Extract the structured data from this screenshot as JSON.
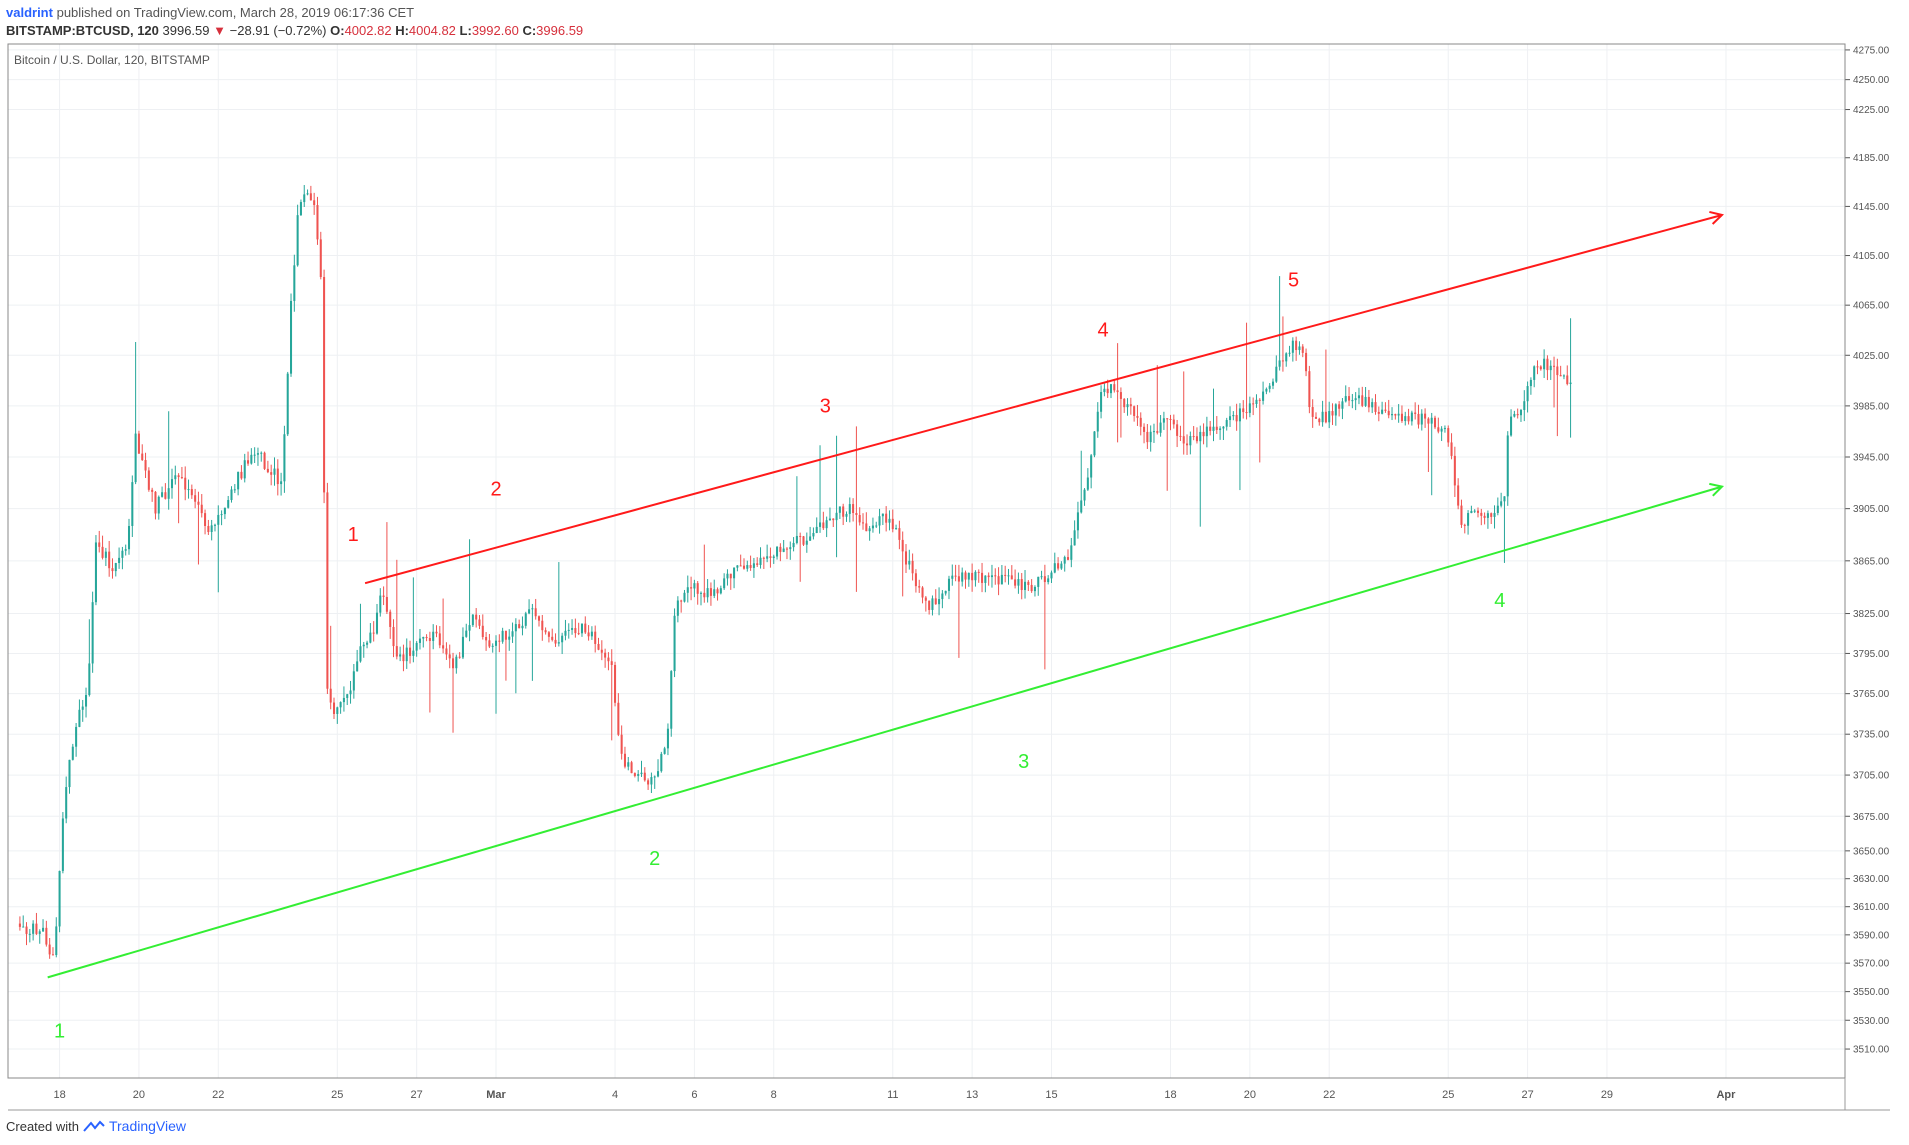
{
  "header": {
    "author": "valdrint",
    "published": "published on TradingView.com, March 28, 2019 06:17:36 CET"
  },
  "quote": {
    "symbol": "BITSTAMP:BTCUSD, 120",
    "last": "3996.59",
    "arrow": "▼",
    "change": "−28.91 (−0.72%)",
    "open_label": "O:",
    "open": "4002.82",
    "high_label": "H:",
    "high": "4004.82",
    "low_label": "L:",
    "low": "3992.60",
    "close_label": "C:",
    "close": "3996.59"
  },
  "footer": {
    "created": "Created with",
    "brand": "TradingView"
  },
  "colors": {
    "up": "#26a69a",
    "down": "#ef5350",
    "resistance": "#ff1a1a",
    "support": "#33ee33"
  },
  "chart_data": {
    "type": "candlestick",
    "title": "Bitcoin / U.S. Dollar, 120, BITSTAMP",
    "y_ticks": [
      4275,
      4250,
      4225,
      4185,
      4145,
      4105,
      4065,
      4025,
      3985,
      3945,
      3905,
      3865,
      3825,
      3795,
      3765,
      3735,
      3705,
      3675,
      3650,
      3630,
      3610,
      3590,
      3570,
      3550,
      3530,
      3510
    ],
    "y_scale": "log",
    "ylim": [
      3490,
      4280
    ],
    "x_ticks": [
      "18",
      "20",
      "22",
      "25",
      "27",
      "Mar",
      "4",
      "6",
      "8",
      "11",
      "13",
      "15",
      "18",
      "20",
      "22",
      "25",
      "27",
      "29",
      "Apr"
    ],
    "x_tick_days": [
      1,
      3,
      5,
      8,
      10,
      12,
      15,
      17,
      19,
      22,
      24,
      26,
      29,
      31,
      33,
      36,
      38,
      40,
      43
    ],
    "xlim_days": [
      -0.3,
      46
    ],
    "x_unit": "days since 2019-02-17",
    "anchors": [
      {
        "d": 0.0,
        "p": 3598
      },
      {
        "d": 0.7,
        "p": 3590
      },
      {
        "d": 0.9,
        "p": 3570
      },
      {
        "d": 1.0,
        "p": 3600
      },
      {
        "d": 1.2,
        "p": 3690
      },
      {
        "d": 1.5,
        "p": 3740
      },
      {
        "d": 1.8,
        "p": 3770
      },
      {
        "d": 2.0,
        "p": 3880
      },
      {
        "d": 2.4,
        "p": 3860
      },
      {
        "d": 2.8,
        "p": 3880
      },
      {
        "d": 3.0,
        "p": 3960
      },
      {
        "d": 3.5,
        "p": 3905
      },
      {
        "d": 4.0,
        "p": 3930
      },
      {
        "d": 4.4,
        "p": 3920
      },
      {
        "d": 4.8,
        "p": 3890
      },
      {
        "d": 5.2,
        "p": 3900
      },
      {
        "d": 5.6,
        "p": 3930
      },
      {
        "d": 6.0,
        "p": 3950
      },
      {
        "d": 6.4,
        "p": 3935
      },
      {
        "d": 6.7,
        "p": 3925
      },
      {
        "d": 6.9,
        "p": 4060
      },
      {
        "d": 7.1,
        "p": 4140
      },
      {
        "d": 7.3,
        "p": 4160
      },
      {
        "d": 7.5,
        "p": 4150
      },
      {
        "d": 7.7,
        "p": 4075
      },
      {
        "d": 7.8,
        "p": 3770
      },
      {
        "d": 8.0,
        "p": 3750
      },
      {
        "d": 8.3,
        "p": 3760
      },
      {
        "d": 8.7,
        "p": 3800
      },
      {
        "d": 9.0,
        "p": 3810
      },
      {
        "d": 9.2,
        "p": 3840
      },
      {
        "d": 9.6,
        "p": 3790
      },
      {
        "d": 10.0,
        "p": 3800
      },
      {
        "d": 10.5,
        "p": 3810
      },
      {
        "d": 11.0,
        "p": 3785
      },
      {
        "d": 11.5,
        "p": 3820
      },
      {
        "d": 12.0,
        "p": 3800
      },
      {
        "d": 12.5,
        "p": 3815
      },
      {
        "d": 13.0,
        "p": 3825
      },
      {
        "d": 13.5,
        "p": 3805
      },
      {
        "d": 14.0,
        "p": 3815
      },
      {
        "d": 14.5,
        "p": 3810
      },
      {
        "d": 15.0,
        "p": 3785
      },
      {
        "d": 15.2,
        "p": 3720
      },
      {
        "d": 15.6,
        "p": 3705
      },
      {
        "d": 16.0,
        "p": 3700
      },
      {
        "d": 16.4,
        "p": 3730
      },
      {
        "d": 16.6,
        "p": 3835
      },
      {
        "d": 17.0,
        "p": 3845
      },
      {
        "d": 17.5,
        "p": 3840
      },
      {
        "d": 18.0,
        "p": 3855
      },
      {
        "d": 18.5,
        "p": 3860
      },
      {
        "d": 19.0,
        "p": 3870
      },
      {
        "d": 19.5,
        "p": 3880
      },
      {
        "d": 20.0,
        "p": 3880
      },
      {
        "d": 20.5,
        "p": 3900
      },
      {
        "d": 21.0,
        "p": 3905
      },
      {
        "d": 21.5,
        "p": 3890
      },
      {
        "d": 22.0,
        "p": 3900
      },
      {
        "d": 22.5,
        "p": 3860
      },
      {
        "d": 23.0,
        "p": 3830
      },
      {
        "d": 23.5,
        "p": 3850
      },
      {
        "d": 24.0,
        "p": 3855
      },
      {
        "d": 24.5,
        "p": 3850
      },
      {
        "d": 25.0,
        "p": 3850
      },
      {
        "d": 25.5,
        "p": 3845
      },
      {
        "d": 26.0,
        "p": 3855
      },
      {
        "d": 26.5,
        "p": 3865
      },
      {
        "d": 26.8,
        "p": 3905
      },
      {
        "d": 27.0,
        "p": 3930
      },
      {
        "d": 27.3,
        "p": 3990
      },
      {
        "d": 27.5,
        "p": 4000
      },
      {
        "d": 28.0,
        "p": 3985
      },
      {
        "d": 28.5,
        "p": 3960
      },
      {
        "d": 29.0,
        "p": 3975
      },
      {
        "d": 29.5,
        "p": 3955
      },
      {
        "d": 30.0,
        "p": 3965
      },
      {
        "d": 30.5,
        "p": 3975
      },
      {
        "d": 31.0,
        "p": 3980
      },
      {
        "d": 31.5,
        "p": 3995
      },
      {
        "d": 32.0,
        "p": 4030
      },
      {
        "d": 32.4,
        "p": 4035
      },
      {
        "d": 32.6,
        "p": 3980
      },
      {
        "d": 33.0,
        "p": 3975
      },
      {
        "d": 33.5,
        "p": 3990
      },
      {
        "d": 34.0,
        "p": 3990
      },
      {
        "d": 34.5,
        "p": 3980
      },
      {
        "d": 35.0,
        "p": 3975
      },
      {
        "d": 35.5,
        "p": 3975
      },
      {
        "d": 36.0,
        "p": 3965
      },
      {
        "d": 36.2,
        "p": 3940
      },
      {
        "d": 36.4,
        "p": 3890
      },
      {
        "d": 36.8,
        "p": 3905
      },
      {
        "d": 37.2,
        "p": 3900
      },
      {
        "d": 37.5,
        "p": 3910
      },
      {
        "d": 37.6,
        "p": 3970
      },
      {
        "d": 38.0,
        "p": 3990
      },
      {
        "d": 38.3,
        "p": 4020
      },
      {
        "d": 38.7,
        "p": 4015
      },
      {
        "d": 39.1,
        "p": 4005
      }
    ],
    "trendlines": [
      {
        "name": "resistance",
        "from": {
          "d": 8.7,
          "p": 3848
        },
        "to": {
          "d": 42.9,
          "p": 4138
        }
      },
      {
        "name": "support",
        "from": {
          "d": 0.7,
          "p": 3560
        },
        "to": {
          "d": 42.9,
          "p": 3922
        }
      }
    ],
    "wave_labels": [
      {
        "text": "1",
        "series": "resistance",
        "d": 8.4,
        "p": 3880
      },
      {
        "text": "2",
        "series": "resistance",
        "d": 12.0,
        "p": 3915
      },
      {
        "text": "3",
        "series": "resistance",
        "d": 20.3,
        "p": 3980
      },
      {
        "text": "4",
        "series": "resistance",
        "d": 27.3,
        "p": 4040
      },
      {
        "text": "5",
        "series": "resistance",
        "d": 32.1,
        "p": 4080
      },
      {
        "text": "1",
        "series": "support",
        "d": 1.0,
        "p": 3518
      },
      {
        "text": "2",
        "series": "support",
        "d": 16.0,
        "p": 3640
      },
      {
        "text": "3",
        "series": "support",
        "d": 25.3,
        "p": 3710
      },
      {
        "text": "4",
        "series": "support",
        "d": 37.3,
        "p": 3830
      }
    ]
  }
}
